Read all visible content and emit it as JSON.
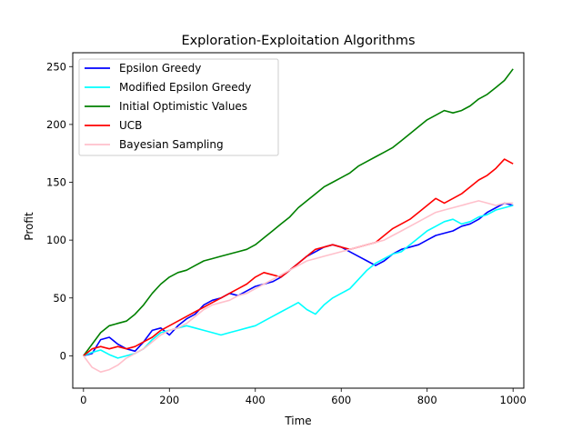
{
  "chart_data": {
    "type": "line",
    "title": "Exploration-Exploitation Algorithms",
    "xlabel": "Time",
    "ylabel": "Profit",
    "xlim": [
      -25,
      1025
    ],
    "ylim": [
      -28,
      262
    ],
    "xticks": [
      0,
      200,
      400,
      600,
      800,
      1000
    ],
    "yticks": [
      0,
      50,
      100,
      150,
      200,
      250
    ],
    "grid": false,
    "legend_position": "upper-left",
    "series": [
      {
        "name": "Epsilon Greedy",
        "color": "#0000ff",
        "points": [
          [
            0,
            0
          ],
          [
            20,
            2
          ],
          [
            40,
            14
          ],
          [
            60,
            16
          ],
          [
            80,
            10
          ],
          [
            100,
            6
          ],
          [
            120,
            4
          ],
          [
            140,
            12
          ],
          [
            160,
            22
          ],
          [
            180,
            24
          ],
          [
            200,
            18
          ],
          [
            220,
            26
          ],
          [
            240,
            32
          ],
          [
            260,
            36
          ],
          [
            280,
            44
          ],
          [
            300,
            48
          ],
          [
            320,
            50
          ],
          [
            340,
            54
          ],
          [
            360,
            52
          ],
          [
            380,
            56
          ],
          [
            400,
            60
          ],
          [
            420,
            62
          ],
          [
            440,
            64
          ],
          [
            460,
            68
          ],
          [
            480,
            74
          ],
          [
            500,
            80
          ],
          [
            520,
            86
          ],
          [
            540,
            90
          ],
          [
            560,
            94
          ],
          [
            580,
            96
          ],
          [
            600,
            94
          ],
          [
            620,
            90
          ],
          [
            640,
            86
          ],
          [
            660,
            82
          ],
          [
            680,
            78
          ],
          [
            700,
            82
          ],
          [
            720,
            88
          ],
          [
            740,
            92
          ],
          [
            760,
            94
          ],
          [
            780,
            96
          ],
          [
            800,
            100
          ],
          [
            820,
            104
          ],
          [
            840,
            106
          ],
          [
            860,
            108
          ],
          [
            880,
            112
          ],
          [
            900,
            114
          ],
          [
            920,
            118
          ],
          [
            940,
            124
          ],
          [
            960,
            128
          ],
          [
            980,
            132
          ],
          [
            1000,
            130
          ]
        ]
      },
      {
        "name": "Modified Epsilon Greedy",
        "color": "#00ffff",
        "points": [
          [
            0,
            0
          ],
          [
            20,
            3
          ],
          [
            40,
            5
          ],
          [
            60,
            1
          ],
          [
            80,
            -2
          ],
          [
            100,
            0
          ],
          [
            120,
            2
          ],
          [
            140,
            6
          ],
          [
            160,
            14
          ],
          [
            180,
            20
          ],
          [
            200,
            22
          ],
          [
            220,
            24
          ],
          [
            240,
            26
          ],
          [
            260,
            24
          ],
          [
            280,
            22
          ],
          [
            300,
            20
          ],
          [
            320,
            18
          ],
          [
            340,
            20
          ],
          [
            360,
            22
          ],
          [
            380,
            24
          ],
          [
            400,
            26
          ],
          [
            420,
            30
          ],
          [
            440,
            34
          ],
          [
            460,
            38
          ],
          [
            480,
            42
          ],
          [
            500,
            46
          ],
          [
            520,
            40
          ],
          [
            540,
            36
          ],
          [
            560,
            44
          ],
          [
            580,
            50
          ],
          [
            600,
            54
          ],
          [
            620,
            58
          ],
          [
            640,
            66
          ],
          [
            660,
            74
          ],
          [
            680,
            80
          ],
          [
            700,
            84
          ],
          [
            720,
            88
          ],
          [
            740,
            90
          ],
          [
            760,
            96
          ],
          [
            780,
            102
          ],
          [
            800,
            108
          ],
          [
            820,
            112
          ],
          [
            840,
            116
          ],
          [
            860,
            118
          ],
          [
            880,
            114
          ],
          [
            900,
            116
          ],
          [
            920,
            120
          ],
          [
            940,
            122
          ],
          [
            960,
            126
          ],
          [
            980,
            128
          ],
          [
            1000,
            130
          ]
        ]
      },
      {
        "name": "Initial Optimistic Values",
        "color": "#008000",
        "points": [
          [
            0,
            0
          ],
          [
            20,
            10
          ],
          [
            40,
            20
          ],
          [
            60,
            26
          ],
          [
            80,
            28
          ],
          [
            100,
            30
          ],
          [
            120,
            36
          ],
          [
            140,
            44
          ],
          [
            160,
            54
          ],
          [
            180,
            62
          ],
          [
            200,
            68
          ],
          [
            220,
            72
          ],
          [
            240,
            74
          ],
          [
            260,
            78
          ],
          [
            280,
            82
          ],
          [
            300,
            84
          ],
          [
            320,
            86
          ],
          [
            340,
            88
          ],
          [
            360,
            90
          ],
          [
            380,
            92
          ],
          [
            400,
            96
          ],
          [
            420,
            102
          ],
          [
            440,
            108
          ],
          [
            460,
            114
          ],
          [
            480,
            120
          ],
          [
            500,
            128
          ],
          [
            520,
            134
          ],
          [
            540,
            140
          ],
          [
            560,
            146
          ],
          [
            580,
            150
          ],
          [
            600,
            154
          ],
          [
            620,
            158
          ],
          [
            640,
            164
          ],
          [
            660,
            168
          ],
          [
            680,
            172
          ],
          [
            700,
            176
          ],
          [
            720,
            180
          ],
          [
            740,
            186
          ],
          [
            760,
            192
          ],
          [
            780,
            198
          ],
          [
            800,
            204
          ],
          [
            820,
            208
          ],
          [
            840,
            212
          ],
          [
            860,
            210
          ],
          [
            880,
            212
          ],
          [
            900,
            216
          ],
          [
            920,
            222
          ],
          [
            940,
            226
          ],
          [
            960,
            232
          ],
          [
            980,
            238
          ],
          [
            1000,
            248
          ]
        ]
      },
      {
        "name": "UCB",
        "color": "#ff0000",
        "points": [
          [
            0,
            0
          ],
          [
            20,
            6
          ],
          [
            40,
            8
          ],
          [
            60,
            6
          ],
          [
            80,
            8
          ],
          [
            100,
            6
          ],
          [
            120,
            8
          ],
          [
            140,
            12
          ],
          [
            160,
            16
          ],
          [
            180,
            22
          ],
          [
            200,
            26
          ],
          [
            220,
            30
          ],
          [
            240,
            34
          ],
          [
            260,
            38
          ],
          [
            280,
            42
          ],
          [
            300,
            46
          ],
          [
            320,
            50
          ],
          [
            340,
            54
          ],
          [
            360,
            58
          ],
          [
            380,
            62
          ],
          [
            400,
            68
          ],
          [
            420,
            72
          ],
          [
            440,
            70
          ],
          [
            460,
            68
          ],
          [
            480,
            74
          ],
          [
            500,
            80
          ],
          [
            520,
            86
          ],
          [
            540,
            92
          ],
          [
            560,
            94
          ],
          [
            580,
            96
          ],
          [
            600,
            94
          ],
          [
            620,
            92
          ],
          [
            640,
            94
          ],
          [
            660,
            96
          ],
          [
            680,
            98
          ],
          [
            700,
            104
          ],
          [
            720,
            110
          ],
          [
            740,
            114
          ],
          [
            760,
            118
          ],
          [
            780,
            124
          ],
          [
            800,
            130
          ],
          [
            820,
            136
          ],
          [
            840,
            132
          ],
          [
            860,
            136
          ],
          [
            880,
            140
          ],
          [
            900,
            146
          ],
          [
            920,
            152
          ],
          [
            940,
            156
          ],
          [
            960,
            162
          ],
          [
            980,
            170
          ],
          [
            1000,
            166
          ]
        ]
      },
      {
        "name": "Bayesian Sampling",
        "color": "#ffc0cb",
        "points": [
          [
            0,
            0
          ],
          [
            20,
            -10
          ],
          [
            40,
            -14
          ],
          [
            60,
            -12
          ],
          [
            80,
            -8
          ],
          [
            100,
            -2
          ],
          [
            120,
            2
          ],
          [
            140,
            6
          ],
          [
            160,
            12
          ],
          [
            180,
            18
          ],
          [
            200,
            22
          ],
          [
            220,
            24
          ],
          [
            240,
            28
          ],
          [
            260,
            34
          ],
          [
            280,
            40
          ],
          [
            300,
            44
          ],
          [
            320,
            46
          ],
          [
            340,
            48
          ],
          [
            360,
            52
          ],
          [
            380,
            54
          ],
          [
            400,
            58
          ],
          [
            420,
            62
          ],
          [
            440,
            66
          ],
          [
            460,
            70
          ],
          [
            480,
            74
          ],
          [
            500,
            78
          ],
          [
            520,
            82
          ],
          [
            540,
            84
          ],
          [
            560,
            86
          ],
          [
            580,
            88
          ],
          [
            600,
            90
          ],
          [
            620,
            92
          ],
          [
            640,
            94
          ],
          [
            660,
            96
          ],
          [
            680,
            98
          ],
          [
            700,
            100
          ],
          [
            720,
            104
          ],
          [
            740,
            108
          ],
          [
            760,
            112
          ],
          [
            780,
            116
          ],
          [
            800,
            120
          ],
          [
            820,
            124
          ],
          [
            840,
            126
          ],
          [
            860,
            128
          ],
          [
            880,
            130
          ],
          [
            900,
            132
          ],
          [
            920,
            134
          ],
          [
            940,
            132
          ],
          [
            960,
            130
          ],
          [
            980,
            132
          ],
          [
            1000,
            132
          ]
        ]
      }
    ]
  }
}
